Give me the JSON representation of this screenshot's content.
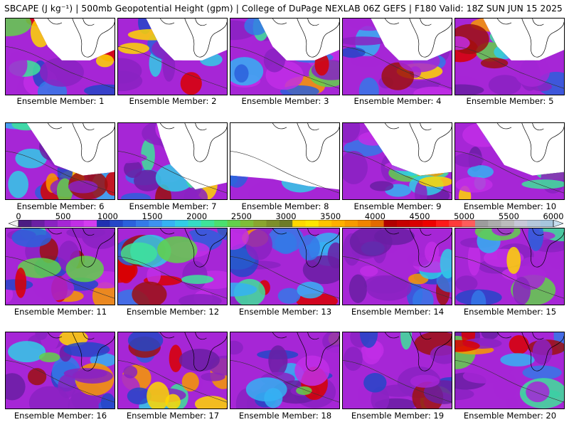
{
  "title": "SBCAPE (J kg⁻¹) | 500mb Geopotential Height (gpm) | College of DuPage NEXLAB 06Z GEFS | F180 Valid: 18Z SUN JUN 15 2025",
  "colorbar": {
    "ticks": [
      "0",
      "500",
      "1000",
      "1500",
      "2000",
      "2500",
      "3000",
      "3500",
      "4000",
      "4500",
      "5000",
      "5500",
      "6000"
    ],
    "colors": [
      "#f2f2f2",
      "#4b1d82",
      "#6a1fa3",
      "#8a22c2",
      "#a626d6",
      "#c12ee6",
      "#d43cf0",
      "#2030b0",
      "#2547c8",
      "#2b60dc",
      "#3479e8",
      "#3d92f0",
      "#35b2f3",
      "#31cde6",
      "#35dcc4",
      "#3ee39a",
      "#4be06e",
      "#62d14a",
      "#7ebd38",
      "#8aa52e",
      "#7d8f2a",
      "#6d7b28",
      "#ffd700",
      "#ffe600",
      "#ffc400",
      "#ffb000",
      "#f79a00",
      "#f08400",
      "#e36a00",
      "#b00000",
      "#c60000",
      "#d90000",
      "#ee0000",
      "#ff1a1a",
      "#ff3b3b",
      "#ff5c5c",
      "#9c9c9c",
      "#acacac",
      "#bcbcbc",
      "#c8c8d8",
      "#b4c8dc",
      "#a6c6de",
      "#c8dff0"
    ]
  },
  "members": [
    {
      "label": "Ensemble Member: 1",
      "cover": "upper"
    },
    {
      "label": "Ensemble Member: 2",
      "cover": "upper"
    },
    {
      "label": "Ensemble Member: 3",
      "cover": "upper"
    },
    {
      "label": "Ensemble Member: 4",
      "cover": "upper"
    },
    {
      "label": "Ensemble Member: 5",
      "cover": "upper"
    },
    {
      "label": "Ensemble Member: 6",
      "cover": "mid"
    },
    {
      "label": "Ensemble Member: 7",
      "cover": "west"
    },
    {
      "label": "Ensemble Member: 8",
      "cover": "low"
    },
    {
      "label": "Ensemble Member: 9",
      "cover": "mid"
    },
    {
      "label": "Ensemble Member: 10",
      "cover": "mid"
    },
    {
      "label": "Ensemble Member: 11",
      "cover": "full"
    },
    {
      "label": "Ensemble Member: 12",
      "cover": "full"
    },
    {
      "label": "Ensemble Member: 13",
      "cover": "full"
    },
    {
      "label": "Ensemble Member: 14",
      "cover": "full"
    },
    {
      "label": "Ensemble Member: 15",
      "cover": "full"
    },
    {
      "label": "Ensemble Member: 16",
      "cover": "full"
    },
    {
      "label": "Ensemble Member: 17",
      "cover": "full"
    },
    {
      "label": "Ensemble Member: 18",
      "cover": "full"
    },
    {
      "label": "Ensemble Member: 19",
      "cover": "full"
    },
    {
      "label": "Ensemble Member: 20",
      "cover": "full"
    }
  ]
}
